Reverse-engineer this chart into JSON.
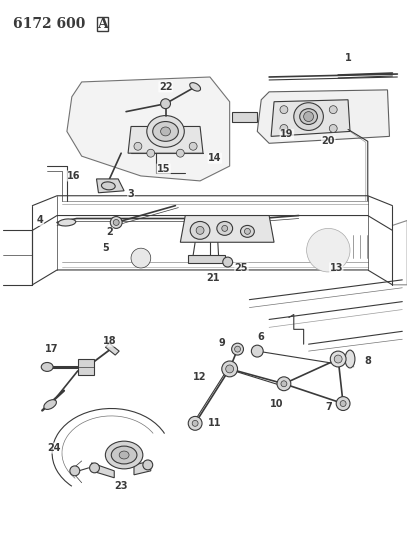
{
  "title": "6172 600 A",
  "bg_color": "#ffffff",
  "line_color": "#3a3a3a",
  "title_fontsize": 10,
  "label_fontsize": 7,
  "figsize": [
    4.1,
    5.33
  ],
  "dpi": 100
}
